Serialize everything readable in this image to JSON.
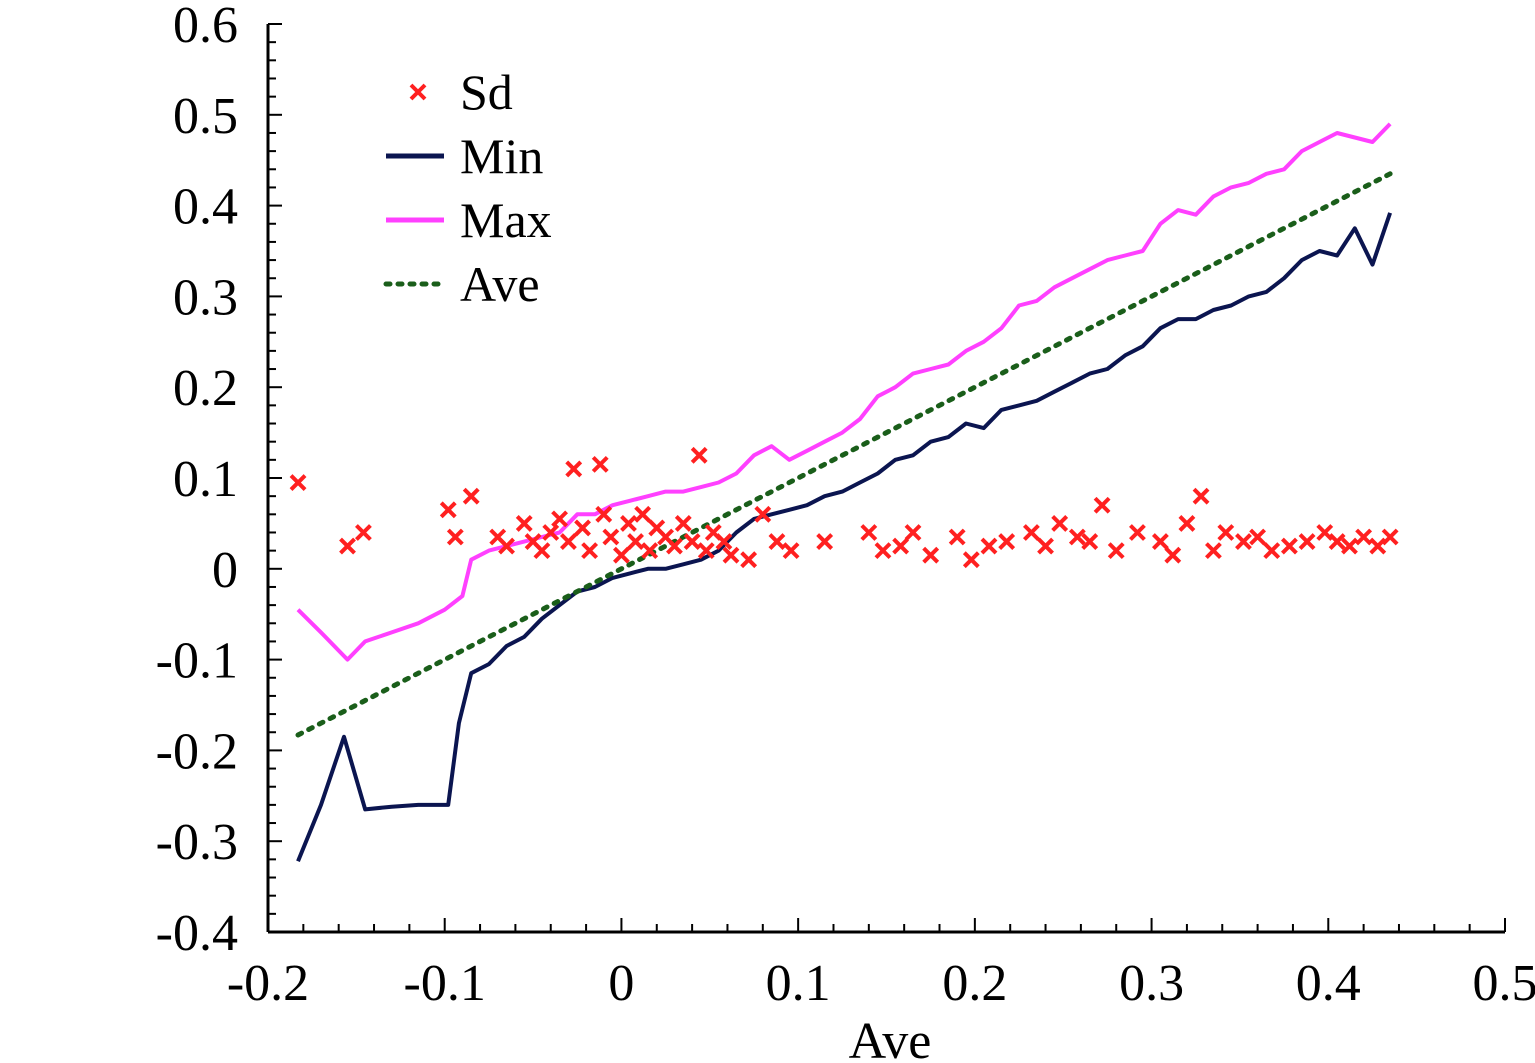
{
  "chart_data": {
    "type": "line",
    "title": "",
    "xlabel": "Ave",
    "ylabel": "",
    "xlim": [
      -0.2,
      0.5
    ],
    "ylim": [
      -0.4,
      0.6
    ],
    "xticks": [
      -0.2,
      -0.1,
      0,
      0.1,
      0.2,
      0.3,
      0.4,
      0.5
    ],
    "xtick_labels": [
      "-0.2",
      "-0.1",
      "0",
      "0.1",
      "0.2",
      "0.3",
      "0.4",
      "0.5"
    ],
    "yticks": [
      -0.4,
      -0.3,
      -0.2,
      -0.1,
      0,
      0.1,
      0.2,
      0.3,
      0.4,
      0.5,
      0.6
    ],
    "ytick_labels": [
      "-0.4",
      "-0.3",
      "-0.2",
      "-0.1",
      "0",
      "0.1",
      "0.2",
      "0.3",
      "0.4",
      "0.5",
      "0.6"
    ],
    "grid": false,
    "legend_position": "top-left",
    "series": [
      {
        "name": "Sd",
        "kind": "scatter",
        "marker": "x",
        "color": "#ff2020",
        "points": [
          [
            -0.183,
            0.095
          ],
          [
            -0.155,
            0.025
          ],
          [
            -0.146,
            0.04
          ],
          [
            -0.098,
            0.065
          ],
          [
            -0.094,
            0.035
          ],
          [
            -0.085,
            0.08
          ],
          [
            -0.07,
            0.035
          ],
          [
            -0.065,
            0.025
          ],
          [
            -0.055,
            0.05
          ],
          [
            -0.05,
            0.03
          ],
          [
            -0.045,
            0.02
          ],
          [
            -0.04,
            0.04
          ],
          [
            -0.035,
            0.055
          ],
          [
            -0.03,
            0.03
          ],
          [
            -0.027,
            0.11
          ],
          [
            -0.022,
            0.045
          ],
          [
            -0.018,
            0.02
          ],
          [
            -0.012,
            0.115
          ],
          [
            -0.01,
            0.06
          ],
          [
            -0.006,
            0.035
          ],
          [
            0.0,
            0.015
          ],
          [
            0.004,
            0.05
          ],
          [
            0.008,
            0.03
          ],
          [
            0.012,
            0.06
          ],
          [
            0.016,
            0.02
          ],
          [
            0.02,
            0.045
          ],
          [
            0.025,
            0.035
          ],
          [
            0.03,
            0.025
          ],
          [
            0.035,
            0.05
          ],
          [
            0.04,
            0.03
          ],
          [
            0.044,
            0.125
          ],
          [
            0.048,
            0.02
          ],
          [
            0.052,
            0.04
          ],
          [
            0.058,
            0.03
          ],
          [
            0.062,
            0.015
          ],
          [
            0.072,
            0.01
          ],
          [
            0.08,
            0.06
          ],
          [
            0.088,
            0.03
          ],
          [
            0.096,
            0.02
          ],
          [
            0.115,
            0.03
          ],
          [
            0.14,
            0.04
          ],
          [
            0.148,
            0.02
          ],
          [
            0.158,
            0.025
          ],
          [
            0.165,
            0.04
          ],
          [
            0.175,
            0.015
          ],
          [
            0.19,
            0.035
          ],
          [
            0.198,
            0.01
          ],
          [
            0.208,
            0.025
          ],
          [
            0.218,
            0.03
          ],
          [
            0.232,
            0.04
          ],
          [
            0.24,
            0.025
          ],
          [
            0.248,
            0.05
          ],
          [
            0.258,
            0.035
          ],
          [
            0.265,
            0.03
          ],
          [
            0.272,
            0.07
          ],
          [
            0.28,
            0.02
          ],
          [
            0.292,
            0.04
          ],
          [
            0.305,
            0.03
          ],
          [
            0.312,
            0.015
          ],
          [
            0.32,
            0.05
          ],
          [
            0.328,
            0.08
          ],
          [
            0.335,
            0.02
          ],
          [
            0.342,
            0.04
          ],
          [
            0.352,
            0.03
          ],
          [
            0.36,
            0.035
          ],
          [
            0.368,
            0.02
          ],
          [
            0.378,
            0.025
          ],
          [
            0.388,
            0.03
          ],
          [
            0.398,
            0.04
          ],
          [
            0.405,
            0.03
          ],
          [
            0.412,
            0.025
          ],
          [
            0.42,
            0.035
          ],
          [
            0.428,
            0.025
          ],
          [
            0.435,
            0.035
          ]
        ]
      },
      {
        "name": "Min",
        "kind": "line",
        "color": "#0b1550",
        "dash": "solid",
        "points": [
          [
            -0.183,
            -0.322
          ],
          [
            -0.17,
            -0.26
          ],
          [
            -0.157,
            -0.185
          ],
          [
            -0.145,
            -0.265
          ],
          [
            -0.13,
            -0.262
          ],
          [
            -0.115,
            -0.26
          ],
          [
            -0.098,
            -0.26
          ],
          [
            -0.092,
            -0.17
          ],
          [
            -0.085,
            -0.115
          ],
          [
            -0.075,
            -0.105
          ],
          [
            -0.065,
            -0.085
          ],
          [
            -0.055,
            -0.075
          ],
          [
            -0.045,
            -0.055
          ],
          [
            -0.035,
            -0.04
          ],
          [
            -0.025,
            -0.025
          ],
          [
            -0.015,
            -0.02
          ],
          [
            -0.005,
            -0.01
          ],
          [
            0.005,
            -0.005
          ],
          [
            0.015,
            0.0
          ],
          [
            0.025,
            0.0
          ],
          [
            0.035,
            0.005
          ],
          [
            0.045,
            0.01
          ],
          [
            0.055,
            0.02
          ],
          [
            0.065,
            0.04
          ],
          [
            0.075,
            0.055
          ],
          [
            0.085,
            0.06
          ],
          [
            0.095,
            0.065
          ],
          [
            0.105,
            0.07
          ],
          [
            0.115,
            0.08
          ],
          [
            0.125,
            0.085
          ],
          [
            0.135,
            0.095
          ],
          [
            0.145,
            0.105
          ],
          [
            0.155,
            0.12
          ],
          [
            0.165,
            0.125
          ],
          [
            0.175,
            0.14
          ],
          [
            0.185,
            0.145
          ],
          [
            0.195,
            0.16
          ],
          [
            0.205,
            0.155
          ],
          [
            0.215,
            0.175
          ],
          [
            0.225,
            0.18
          ],
          [
            0.235,
            0.185
          ],
          [
            0.245,
            0.195
          ],
          [
            0.255,
            0.205
          ],
          [
            0.265,
            0.215
          ],
          [
            0.275,
            0.22
          ],
          [
            0.285,
            0.235
          ],
          [
            0.295,
            0.245
          ],
          [
            0.305,
            0.265
          ],
          [
            0.315,
            0.275
          ],
          [
            0.325,
            0.275
          ],
          [
            0.335,
            0.285
          ],
          [
            0.345,
            0.29
          ],
          [
            0.355,
            0.3
          ],
          [
            0.365,
            0.305
          ],
          [
            0.375,
            0.32
          ],
          [
            0.385,
            0.34
          ],
          [
            0.395,
            0.35
          ],
          [
            0.405,
            0.345
          ],
          [
            0.415,
            0.375
          ],
          [
            0.425,
            0.335
          ],
          [
            0.435,
            0.392
          ]
        ]
      },
      {
        "name": "Max",
        "kind": "line",
        "color": "#ff40ff",
        "dash": "solid",
        "points": [
          [
            -0.183,
            -0.045
          ],
          [
            -0.17,
            -0.07
          ],
          [
            -0.155,
            -0.1
          ],
          [
            -0.145,
            -0.08
          ],
          [
            -0.13,
            -0.07
          ],
          [
            -0.115,
            -0.06
          ],
          [
            -0.1,
            -0.045
          ],
          [
            -0.09,
            -0.03
          ],
          [
            -0.085,
            0.01
          ],
          [
            -0.075,
            0.02
          ],
          [
            -0.065,
            0.025
          ],
          [
            -0.055,
            0.03
          ],
          [
            -0.045,
            0.035
          ],
          [
            -0.035,
            0.04
          ],
          [
            -0.025,
            0.06
          ],
          [
            -0.015,
            0.06
          ],
          [
            -0.005,
            0.07
          ],
          [
            0.005,
            0.075
          ],
          [
            0.015,
            0.08
          ],
          [
            0.025,
            0.085
          ],
          [
            0.035,
            0.085
          ],
          [
            0.045,
            0.09
          ],
          [
            0.055,
            0.095
          ],
          [
            0.065,
            0.105
          ],
          [
            0.075,
            0.125
          ],
          [
            0.085,
            0.135
          ],
          [
            0.095,
            0.12
          ],
          [
            0.105,
            0.13
          ],
          [
            0.115,
            0.14
          ],
          [
            0.125,
            0.15
          ],
          [
            0.135,
            0.165
          ],
          [
            0.145,
            0.19
          ],
          [
            0.155,
            0.2
          ],
          [
            0.165,
            0.215
          ],
          [
            0.175,
            0.22
          ],
          [
            0.185,
            0.225
          ],
          [
            0.195,
            0.24
          ],
          [
            0.205,
            0.25
          ],
          [
            0.215,
            0.265
          ],
          [
            0.225,
            0.29
          ],
          [
            0.235,
            0.295
          ],
          [
            0.245,
            0.31
          ],
          [
            0.255,
            0.32
          ],
          [
            0.265,
            0.33
          ],
          [
            0.275,
            0.34
          ],
          [
            0.285,
            0.345
          ],
          [
            0.295,
            0.35
          ],
          [
            0.305,
            0.38
          ],
          [
            0.315,
            0.395
          ],
          [
            0.325,
            0.39
          ],
          [
            0.335,
            0.41
          ],
          [
            0.345,
            0.42
          ],
          [
            0.355,
            0.425
          ],
          [
            0.365,
            0.435
          ],
          [
            0.375,
            0.44
          ],
          [
            0.385,
            0.46
          ],
          [
            0.395,
            0.47
          ],
          [
            0.405,
            0.48
          ],
          [
            0.415,
            0.475
          ],
          [
            0.425,
            0.47
          ],
          [
            0.435,
            0.49
          ]
        ]
      },
      {
        "name": "Ave",
        "kind": "line",
        "color": "#1a5e1a",
        "dash": "dotted",
        "points": [
          [
            -0.183,
            -0.183
          ],
          [
            0.435,
            0.435
          ]
        ]
      }
    ],
    "legend": [
      {
        "label": "Sd",
        "symbol": "marker-x",
        "color": "#ff2020"
      },
      {
        "label": "Min",
        "symbol": "line-solid",
        "color": "#0b1550"
      },
      {
        "label": "Max",
        "symbol": "line-solid",
        "color": "#ff40ff"
      },
      {
        "label": "Ave",
        "symbol": "line-dotted",
        "color": "#1a5e1a"
      }
    ]
  }
}
